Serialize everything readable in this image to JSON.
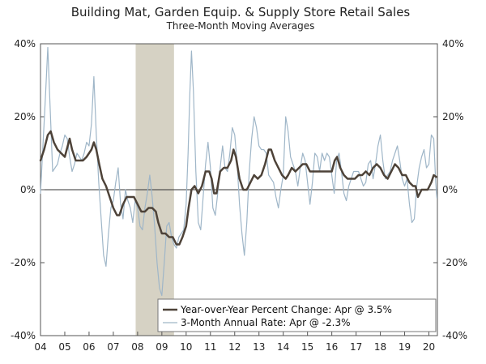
{
  "chart_data": {
    "type": "line",
    "title": "Building Mat, Garden Equip. & Supply Store Retail Sales",
    "subtitle": "Three-Month Moving Averages",
    "xlabel": "",
    "ylabel": "",
    "x_range": [
      2004.0,
      2020.35
    ],
    "ylim": [
      -40,
      40
    ],
    "y_ticks": [
      40,
      20,
      0,
      -20,
      -40
    ],
    "y_tick_labels": [
      "40%",
      "20%",
      "0%",
      "-20%",
      "-40%"
    ],
    "x_ticks": [
      2004,
      2005,
      2006,
      2007,
      2008,
      2009,
      2010,
      2011,
      2012,
      2013,
      2014,
      2015,
      2016,
      2017,
      2018,
      2019,
      2020
    ],
    "x_tick_labels": [
      "04",
      "05",
      "06",
      "07",
      "08",
      "09",
      "10",
      "11",
      "12",
      "13",
      "14",
      "15",
      "16",
      "17",
      "18",
      "19",
      "20"
    ],
    "recession": {
      "start": 2007.92,
      "end": 2009.5,
      "color": "#d6d2c4"
    },
    "legend_position": "bottom-center",
    "series": [
      {
        "name": "Year-over-Year Percent Change: Apr @ 3.5%",
        "color": "#4d4238",
        "width": 2.5,
        "points": [
          [
            2004.0,
            8
          ],
          [
            2004.15,
            11
          ],
          [
            2004.3,
            15
          ],
          [
            2004.42,
            16
          ],
          [
            2004.55,
            13
          ],
          [
            2004.7,
            11
          ],
          [
            2004.85,
            10
          ],
          [
            2005.0,
            9
          ],
          [
            2005.12,
            12
          ],
          [
            2005.2,
            14
          ],
          [
            2005.3,
            11
          ],
          [
            2005.45,
            8
          ],
          [
            2005.6,
            8
          ],
          [
            2005.75,
            8
          ],
          [
            2005.9,
            9
          ],
          [
            2006.0,
            10
          ],
          [
            2006.1,
            11
          ],
          [
            2006.2,
            13
          ],
          [
            2006.3,
            11
          ],
          [
            2006.42,
            7
          ],
          [
            2006.55,
            3
          ],
          [
            2006.7,
            1
          ],
          [
            2006.85,
            -2
          ],
          [
            2007.0,
            -5
          ],
          [
            2007.15,
            -7
          ],
          [
            2007.25,
            -7
          ],
          [
            2007.4,
            -4
          ],
          [
            2007.55,
            -2
          ],
          [
            2007.7,
            -2
          ],
          [
            2007.85,
            -2
          ],
          [
            2008.0,
            -4
          ],
          [
            2008.15,
            -6
          ],
          [
            2008.3,
            -6
          ],
          [
            2008.45,
            -5
          ],
          [
            2008.6,
            -5
          ],
          [
            2008.75,
            -6
          ],
          [
            2008.85,
            -9
          ],
          [
            2009.0,
            -12
          ],
          [
            2009.15,
            -12
          ],
          [
            2009.3,
            -13
          ],
          [
            2009.45,
            -13
          ],
          [
            2009.6,
            -15
          ],
          [
            2009.72,
            -15
          ],
          [
            2009.85,
            -13
          ],
          [
            2010.0,
            -10
          ],
          [
            2010.1,
            -5
          ],
          [
            2010.22,
            0
          ],
          [
            2010.35,
            1
          ],
          [
            2010.5,
            -1
          ],
          [
            2010.65,
            1
          ],
          [
            2010.8,
            5
          ],
          [
            2010.95,
            5
          ],
          [
            2011.05,
            3
          ],
          [
            2011.15,
            -1
          ],
          [
            2011.25,
            -1
          ],
          [
            2011.4,
            5
          ],
          [
            2011.55,
            6
          ],
          [
            2011.7,
            6
          ],
          [
            2011.85,
            8
          ],
          [
            2011.95,
            11
          ],
          [
            2012.05,
            9
          ],
          [
            2012.2,
            3
          ],
          [
            2012.35,
            0
          ],
          [
            2012.5,
            0
          ],
          [
            2012.65,
            2
          ],
          [
            2012.8,
            4
          ],
          [
            2012.95,
            3
          ],
          [
            2013.1,
            4
          ],
          [
            2013.25,
            7
          ],
          [
            2013.4,
            11
          ],
          [
            2013.5,
            11
          ],
          [
            2013.65,
            8
          ],
          [
            2013.8,
            6
          ],
          [
            2013.95,
            4
          ],
          [
            2014.1,
            3
          ],
          [
            2014.2,
            4
          ],
          [
            2014.35,
            6
          ],
          [
            2014.5,
            5
          ],
          [
            2014.65,
            6
          ],
          [
            2014.8,
            7
          ],
          [
            2014.95,
            7
          ],
          [
            2015.1,
            5
          ],
          [
            2015.25,
            5
          ],
          [
            2015.4,
            5
          ],
          [
            2015.55,
            5
          ],
          [
            2015.7,
            5
          ],
          [
            2015.85,
            5
          ],
          [
            2016.0,
            5
          ],
          [
            2016.12,
            8
          ],
          [
            2016.22,
            9
          ],
          [
            2016.35,
            6
          ],
          [
            2016.5,
            4
          ],
          [
            2016.65,
            3
          ],
          [
            2016.8,
            3
          ],
          [
            2016.95,
            3
          ],
          [
            2017.1,
            4
          ],
          [
            2017.25,
            4
          ],
          [
            2017.4,
            5
          ],
          [
            2017.55,
            4
          ],
          [
            2017.7,
            6
          ],
          [
            2017.85,
            7
          ],
          [
            2018.0,
            6
          ],
          [
            2018.15,
            4
          ],
          [
            2018.3,
            3
          ],
          [
            2018.45,
            5
          ],
          [
            2018.6,
            7
          ],
          [
            2018.75,
            6
          ],
          [
            2018.9,
            4
          ],
          [
            2019.05,
            4
          ],
          [
            2019.2,
            2
          ],
          [
            2019.35,
            1
          ],
          [
            2019.45,
            1
          ],
          [
            2019.55,
            -2
          ],
          [
            2019.7,
            0
          ],
          [
            2019.85,
            0
          ],
          [
            2019.95,
            0
          ],
          [
            2020.1,
            2
          ],
          [
            2020.2,
            4
          ],
          [
            2020.3,
            3.5
          ]
        ]
      },
      {
        "name": "3-Month Annual Rate: Apr @ -2.3%",
        "color": "#9fb6c8",
        "width": 1.2,
        "points": [
          [
            2004.0,
            -1
          ],
          [
            2004.1,
            12
          ],
          [
            2004.2,
            25
          ],
          [
            2004.3,
            39
          ],
          [
            2004.4,
            22
          ],
          [
            2004.5,
            5
          ],
          [
            2004.6,
            6
          ],
          [
            2004.7,
            7
          ],
          [
            2004.8,
            10
          ],
          [
            2004.9,
            12
          ],
          [
            2005.0,
            15
          ],
          [
            2005.1,
            14
          ],
          [
            2005.2,
            9
          ],
          [
            2005.3,
            5
          ],
          [
            2005.4,
            7
          ],
          [
            2005.5,
            10
          ],
          [
            2005.6,
            9
          ],
          [
            2005.7,
            8
          ],
          [
            2005.8,
            10
          ],
          [
            2005.9,
            13
          ],
          [
            2006.0,
            12
          ],
          [
            2006.1,
            18
          ],
          [
            2006.2,
            31
          ],
          [
            2006.3,
            15
          ],
          [
            2006.4,
            2
          ],
          [
            2006.5,
            -8
          ],
          [
            2006.6,
            -18
          ],
          [
            2006.7,
            -21
          ],
          [
            2006.8,
            -12
          ],
          [
            2006.9,
            -5
          ],
          [
            2007.0,
            -3
          ],
          [
            2007.1,
            2
          ],
          [
            2007.2,
            6
          ],
          [
            2007.3,
            -4
          ],
          [
            2007.4,
            -8
          ],
          [
            2007.5,
            0
          ],
          [
            2007.6,
            -3
          ],
          [
            2007.7,
            -5
          ],
          [
            2007.8,
            -9
          ],
          [
            2007.9,
            -3
          ],
          [
            2008.0,
            -5
          ],
          [
            2008.1,
            -10
          ],
          [
            2008.2,
            -11
          ],
          [
            2008.3,
            -5
          ],
          [
            2008.4,
            -1
          ],
          [
            2008.5,
            4
          ],
          [
            2008.6,
            -2
          ],
          [
            2008.7,
            -10
          ],
          [
            2008.8,
            -20
          ],
          [
            2008.9,
            -27
          ],
          [
            2009.0,
            -29
          ],
          [
            2009.1,
            -20
          ],
          [
            2009.2,
            -10
          ],
          [
            2009.3,
            -9
          ],
          [
            2009.4,
            -13
          ],
          [
            2009.5,
            -15
          ],
          [
            2009.6,
            -16
          ],
          [
            2009.7,
            -13
          ],
          [
            2009.8,
            -12
          ],
          [
            2009.9,
            -11
          ],
          [
            2010.0,
            -4
          ],
          [
            2010.08,
            10
          ],
          [
            2010.15,
            26
          ],
          [
            2010.22,
            38
          ],
          [
            2010.3,
            27
          ],
          [
            2010.4,
            5
          ],
          [
            2010.5,
            -9
          ],
          [
            2010.6,
            -11
          ],
          [
            2010.7,
            -2
          ],
          [
            2010.8,
            7
          ],
          [
            2010.9,
            13
          ],
          [
            2011.0,
            6
          ],
          [
            2011.1,
            -5
          ],
          [
            2011.2,
            -7
          ],
          [
            2011.3,
            -1
          ],
          [
            2011.4,
            6
          ],
          [
            2011.5,
            12
          ],
          [
            2011.6,
            6
          ],
          [
            2011.7,
            5
          ],
          [
            2011.8,
            10
          ],
          [
            2011.9,
            17
          ],
          [
            2012.0,
            15
          ],
          [
            2012.1,
            7
          ],
          [
            2012.2,
            -4
          ],
          [
            2012.3,
            -12
          ],
          [
            2012.4,
            -18
          ],
          [
            2012.5,
            -9
          ],
          [
            2012.6,
            5
          ],
          [
            2012.7,
            14
          ],
          [
            2012.8,
            20
          ],
          [
            2012.9,
            17
          ],
          [
            2013.0,
            12
          ],
          [
            2013.1,
            11
          ],
          [
            2013.2,
            11
          ],
          [
            2013.3,
            10
          ],
          [
            2013.4,
            4
          ],
          [
            2013.5,
            3
          ],
          [
            2013.6,
            2
          ],
          [
            2013.7,
            -2
          ],
          [
            2013.8,
            -5
          ],
          [
            2013.9,
            0
          ],
          [
            2014.0,
            4
          ],
          [
            2014.1,
            20
          ],
          [
            2014.2,
            16
          ],
          [
            2014.3,
            9
          ],
          [
            2014.4,
            7
          ],
          [
            2014.5,
            5
          ],
          [
            2014.6,
            1
          ],
          [
            2014.7,
            6
          ],
          [
            2014.8,
            10
          ],
          [
            2014.9,
            8
          ],
          [
            2015.0,
            2
          ],
          [
            2015.1,
            -4
          ],
          [
            2015.2,
            2
          ],
          [
            2015.3,
            10
          ],
          [
            2015.4,
            9
          ],
          [
            2015.5,
            5
          ],
          [
            2015.6,
            10
          ],
          [
            2015.7,
            8
          ],
          [
            2015.8,
            10
          ],
          [
            2015.9,
            9
          ],
          [
            2016.0,
            4
          ],
          [
            2016.1,
            -1
          ],
          [
            2016.2,
            8
          ],
          [
            2016.3,
            10
          ],
          [
            2016.4,
            5
          ],
          [
            2016.5,
            -1
          ],
          [
            2016.6,
            -3
          ],
          [
            2016.7,
            1
          ],
          [
            2016.8,
            3
          ],
          [
            2016.9,
            5
          ],
          [
            2017.0,
            5
          ],
          [
            2017.1,
            5
          ],
          [
            2017.2,
            3
          ],
          [
            2017.3,
            1
          ],
          [
            2017.4,
            2
          ],
          [
            2017.5,
            7
          ],
          [
            2017.6,
            8
          ],
          [
            2017.7,
            3
          ],
          [
            2017.8,
            7
          ],
          [
            2017.9,
            12
          ],
          [
            2018.0,
            15
          ],
          [
            2018.1,
            8
          ],
          [
            2018.2,
            3
          ],
          [
            2018.3,
            4
          ],
          [
            2018.4,
            5
          ],
          [
            2018.5,
            8
          ],
          [
            2018.6,
            10
          ],
          [
            2018.7,
            12
          ],
          [
            2018.8,
            8
          ],
          [
            2018.9,
            3
          ],
          [
            2019.0,
            1
          ],
          [
            2019.1,
            3
          ],
          [
            2019.2,
            -4
          ],
          [
            2019.3,
            -9
          ],
          [
            2019.4,
            -8
          ],
          [
            2019.5,
            1
          ],
          [
            2019.6,
            6
          ],
          [
            2019.7,
            9
          ],
          [
            2019.8,
            11
          ],
          [
            2019.9,
            6
          ],
          [
            2020.0,
            7
          ],
          [
            2020.1,
            15
          ],
          [
            2020.2,
            14
          ],
          [
            2020.28,
            2
          ],
          [
            2020.33,
            -2.3
          ]
        ]
      }
    ]
  }
}
